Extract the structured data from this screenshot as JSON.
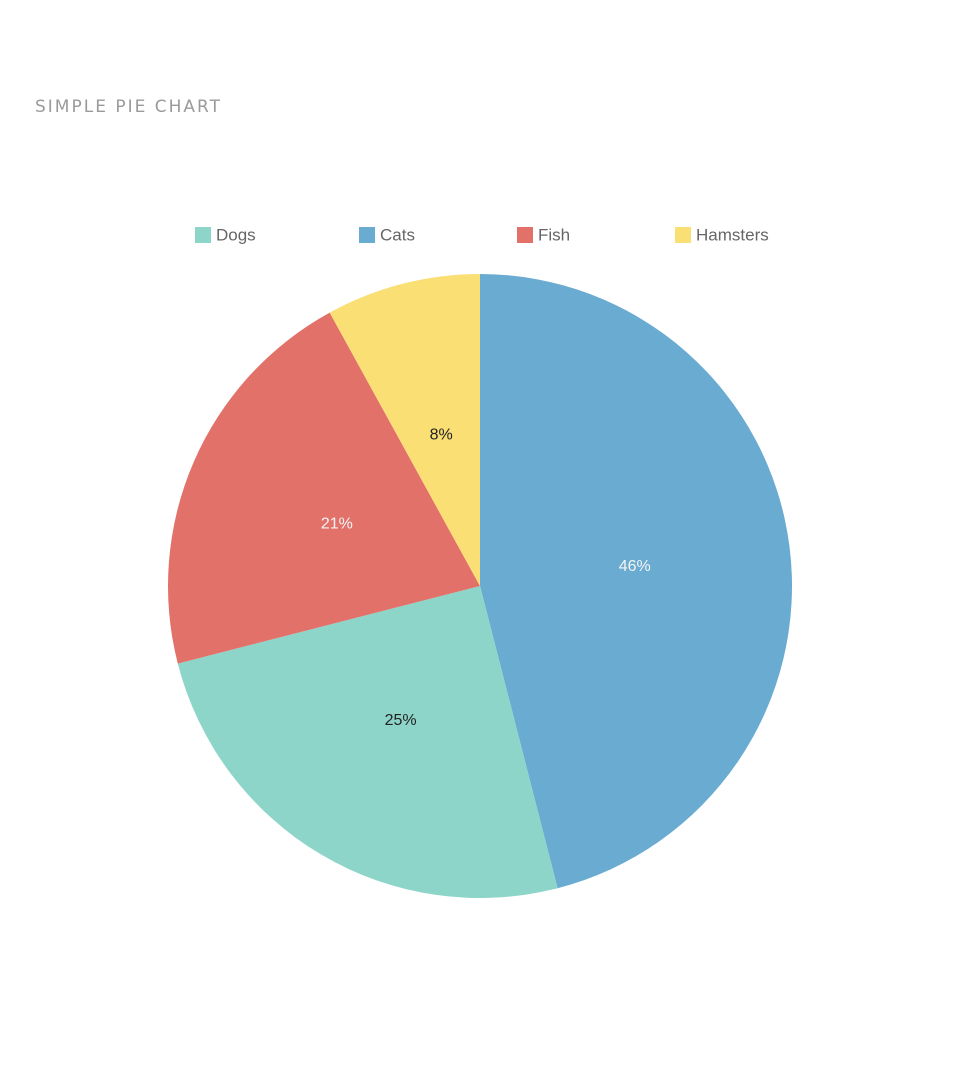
{
  "title": "SIMPLE PIE CHART",
  "chart_data": {
    "type": "pie",
    "title": "SIMPLE PIE CHART",
    "categories": [
      "Dogs",
      "Cats",
      "Fish",
      "Hamsters"
    ],
    "values": [
      25,
      46,
      21,
      8
    ],
    "labels": [
      "25%",
      "46%",
      "21%",
      "8%"
    ],
    "colors": [
      "#8dd5c9",
      "#6aabd2",
      "#e2716a",
      "#fadf75"
    ],
    "label_colors": [
      "#222222",
      "#f4f4f4",
      "#f4f4f4",
      "#222222"
    ],
    "legend": {
      "placement": "top"
    },
    "slice_order": [
      "Cats",
      "Dogs",
      "Fish",
      "Hamsters"
    ],
    "start": "12 o'clock",
    "direction": "clockwise"
  }
}
